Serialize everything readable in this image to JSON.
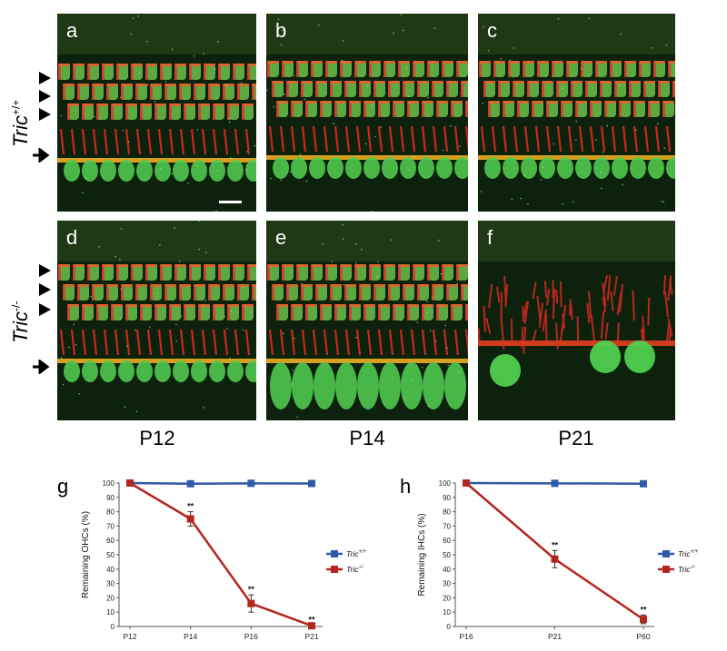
{
  "panels": [
    {
      "label": "a",
      "seed": 1,
      "variant": "wt"
    },
    {
      "label": "b",
      "seed": 2,
      "variant": "wt"
    },
    {
      "label": "c",
      "seed": 3,
      "variant": "wt"
    },
    {
      "label": "d",
      "seed": 4,
      "variant": "ko"
    },
    {
      "label": "e",
      "seed": 5,
      "variant": "ko14"
    },
    {
      "label": "f",
      "seed": 6,
      "variant": "ko21"
    }
  ],
  "row_labels": {
    "wt_base": "Tric",
    "wt_sup": "+/+",
    "ko_base": "Tric",
    "ko_sup": "-/-"
  },
  "ages": [
    "P12",
    "P14",
    "P21"
  ],
  "chart_data": [
    {
      "panel_letter": "g",
      "type": "line",
      "categories": [
        "P12",
        "P14",
        "P16",
        "P21"
      ],
      "ylabel": "Remaining OHCs (%)",
      "xlabel": "",
      "ylim": [
        0,
        100
      ],
      "yticks": [
        0,
        10,
        20,
        30,
        40,
        50,
        60,
        70,
        80,
        90,
        100
      ],
      "series": [
        {
          "name_base": "Tric",
          "name_sup": "+/+",
          "color": "#2e5aa8",
          "values": [
            100,
            99.5,
            99.8,
            99.7
          ],
          "errors": [
            0,
            0,
            0,
            0
          ],
          "sig": [
            "",
            "",
            "",
            ""
          ]
        },
        {
          "name_base": "Tric",
          "name_sup": "-/-",
          "color": "#b3261e",
          "values": [
            100,
            75,
            16,
            0.5
          ],
          "errors": [
            0,
            5,
            6,
            0.5
          ],
          "sig": [
            "",
            "**",
            "**",
            "**"
          ]
        }
      ],
      "legend": "right"
    },
    {
      "panel_letter": "h",
      "type": "line",
      "categories": [
        "P16",
        "P21",
        "P60"
      ],
      "ylabel": "Remaining IHCs (%)",
      "xlabel": "",
      "ylim": [
        0,
        100
      ],
      "yticks": [
        0,
        10,
        20,
        30,
        40,
        50,
        60,
        70,
        80,
        90,
        100
      ],
      "series": [
        {
          "name_base": "Tric",
          "name_sup": "+/+",
          "color": "#2e5aa8",
          "values": [
            100,
            99.8,
            99.5
          ],
          "errors": [
            0,
            0,
            0
          ],
          "sig": [
            "",
            "",
            ""
          ]
        },
        {
          "name_base": "Tric",
          "name_sup": "-/-",
          "color": "#b3261e",
          "values": [
            100,
            47,
            5
          ],
          "errors": [
            0,
            6,
            3
          ],
          "sig": [
            "",
            "**",
            "**"
          ]
        }
      ],
      "legend": "right"
    }
  ]
}
